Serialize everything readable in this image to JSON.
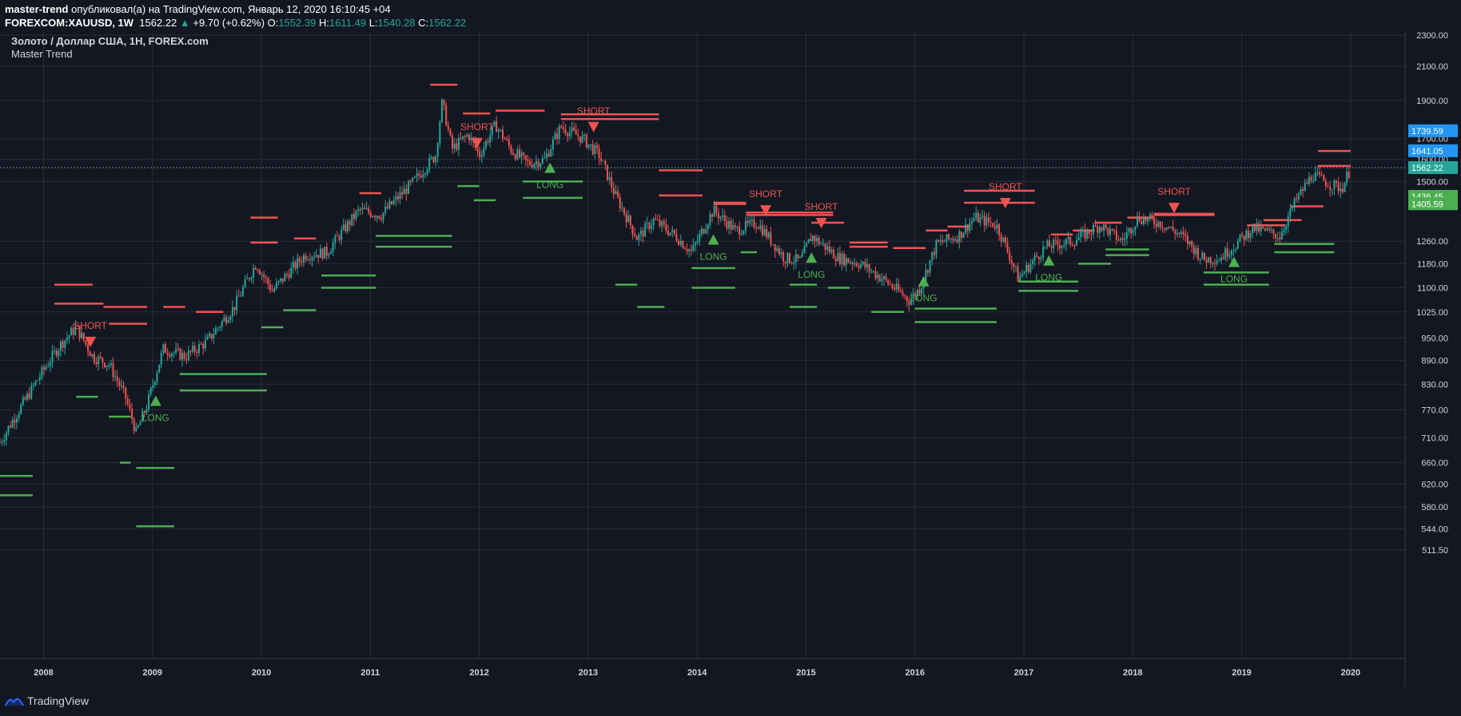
{
  "header": {
    "author": "master-trend",
    "published_text": "опубликовал(а) на TradingView.com, Январь 12, 2020 16:10:45 +04",
    "symbol": "FOREXCOM:XAUUSD, 1W",
    "last": "1562.22",
    "change_arrow": "▲",
    "change": "+9.70 (+0.62%)",
    "o_label": "O:",
    "o_value": "1552.39",
    "h_label": "H:",
    "h_value": "1611.49",
    "l_label": "L:",
    "l_value": "1540.28",
    "c_label": "C:",
    "c_value": "1562.22"
  },
  "footer": {
    "brand": "TradingView"
  },
  "colors": {
    "bg": "#131722",
    "grid": "#2a2e39",
    "up": "#26a69a",
    "down": "#ef5350",
    "short": "#f05350",
    "long": "#4caf50",
    "axis_text": "#d1d4dc",
    "label_blue": "#2196f3",
    "label_teal": "#26a69a",
    "label_green": "#4caf50"
  },
  "chart_data": {
    "type": "candlestick",
    "title": "Золото / Доллар США, 1Н, FOREX.com",
    "indicator": "Master Trend",
    "y_ticks": [
      "2300.00",
      "2100.00",
      "1900.00",
      "1700.00",
      "1600.00",
      "1500.00",
      "1260.00",
      "1180.00",
      "1100.00",
      "1025.00",
      "950.00",
      "890.00",
      "830.00",
      "770.00",
      "710.00",
      "660.00",
      "620.00",
      "580.00",
      "544.00",
      "511.50"
    ],
    "y_scale": "log",
    "x_ticks": [
      "2008",
      "2009",
      "2010",
      "2011",
      "2012",
      "2013",
      "2014",
      "2015",
      "2016",
      "2017",
      "2018",
      "2019",
      "2020"
    ],
    "x_range": [
      2007.6,
      2020.5
    ],
    "price_series_anchors": [
      [
        2007.6,
        700
      ],
      [
        2007.85,
        800
      ],
      [
        2008.15,
        930
      ],
      [
        2008.3,
        980
      ],
      [
        2008.45,
        900
      ],
      [
        2008.6,
        880
      ],
      [
        2008.75,
        800
      ],
      [
        2008.85,
        720
      ],
      [
        2008.95,
        780
      ],
      [
        2009.1,
        920
      ],
      [
        2009.3,
        900
      ],
      [
        2009.5,
        940
      ],
      [
        2009.75,
        1040
      ],
      [
        2009.95,
        1180
      ],
      [
        2010.1,
        1090
      ],
      [
        2010.4,
        1210
      ],
      [
        2010.6,
        1220
      ],
      [
        2010.9,
        1380
      ],
      [
        2011.1,
        1360
      ],
      [
        2011.4,
        1500
      ],
      [
        2011.6,
        1620
      ],
      [
        2011.66,
        1890
      ],
      [
        2011.75,
        1650
      ],
      [
        2011.9,
        1720
      ],
      [
        2012.0,
        1620
      ],
      [
        2012.15,
        1770
      ],
      [
        2012.3,
        1640
      ],
      [
        2012.45,
        1580
      ],
      [
        2012.6,
        1600
      ],
      [
        2012.75,
        1760
      ],
      [
        2012.95,
        1700
      ],
      [
        2013.1,
        1620
      ],
      [
        2013.25,
        1440
      ],
      [
        2013.45,
        1270
      ],
      [
        2013.6,
        1340
      ],
      [
        2013.8,
        1280
      ],
      [
        2013.95,
        1220
      ],
      [
        2014.15,
        1380
      ],
      [
        2014.35,
        1300
      ],
      [
        2014.55,
        1330
      ],
      [
        2014.8,
        1200
      ],
      [
        2014.95,
        1190
      ],
      [
        2015.05,
        1280
      ],
      [
        2015.3,
        1200
      ],
      [
        2015.5,
        1180
      ],
      [
        2015.7,
        1130
      ],
      [
        2015.95,
        1060
      ],
      [
        2016.05,
        1100
      ],
      [
        2016.2,
        1250
      ],
      [
        2016.4,
        1280
      ],
      [
        2016.55,
        1350
      ],
      [
        2016.75,
        1320
      ],
      [
        2016.95,
        1130
      ],
      [
        2017.2,
        1240
      ],
      [
        2017.45,
        1260
      ],
      [
        2017.7,
        1320
      ],
      [
        2017.9,
        1260
      ],
      [
        2018.05,
        1350
      ],
      [
        2018.25,
        1330
      ],
      [
        2018.45,
        1280
      ],
      [
        2018.65,
        1195
      ],
      [
        2018.8,
        1200
      ],
      [
        2018.95,
        1250
      ],
      [
        2019.1,
        1310
      ],
      [
        2019.35,
        1280
      ],
      [
        2019.5,
        1420
      ],
      [
        2019.65,
        1530
      ],
      [
        2019.8,
        1490
      ],
      [
        2019.92,
        1470
      ],
      [
        2020.0,
        1560
      ]
    ],
    "short_signals": [
      {
        "x": 2008.43,
        "price": 940,
        "text": "SHORT"
      },
      {
        "x": 2011.98,
        "price": 1680,
        "text": "SHORT"
      },
      {
        "x": 2013.05,
        "price": 1760,
        "text": "SHORT"
      },
      {
        "x": 2014.63,
        "price": 1380,
        "text": "SHORT"
      },
      {
        "x": 2015.14,
        "price": 1330,
        "text": "SHORT"
      },
      {
        "x": 2016.83,
        "price": 1410,
        "text": "SHORT"
      },
      {
        "x": 2018.38,
        "price": 1390,
        "text": "SHORT"
      }
    ],
    "long_signals": [
      {
        "x": 2009.03,
        "price": 790,
        "text": "LONG"
      },
      {
        "x": 2012.65,
        "price": 1560,
        "text": "LONG"
      },
      {
        "x": 2014.15,
        "price": 1265,
        "text": "LONG"
      },
      {
        "x": 2015.05,
        "price": 1200,
        "text": "LONG"
      },
      {
        "x": 2016.08,
        "price": 1120,
        "text": "LONG"
      },
      {
        "x": 2017.23,
        "price": 1190,
        "text": "LONG"
      },
      {
        "x": 2018.93,
        "price": 1185,
        "text": "LONG"
      }
    ],
    "resistance_levels": [
      [
        2008.1,
        2008.45,
        1110
      ],
      [
        2008.1,
        2008.55,
        1050
      ],
      [
        2008.55,
        2008.95,
        1040
      ],
      [
        2008.6,
        2008.95,
        990
      ],
      [
        2009.1,
        2009.3,
        1040
      ],
      [
        2009.4,
        2009.65,
        1025
      ],
      [
        2009.9,
        2010.15,
        1350
      ],
      [
        2009.9,
        2010.15,
        1255
      ],
      [
        2010.3,
        2010.5,
        1270
      ],
      [
        2010.9,
        2011.1,
        1450
      ],
      [
        2011.55,
        2011.8,
        1990
      ],
      [
        2011.85,
        2012.1,
        1830
      ],
      [
        2012.15,
        2012.6,
        1845
      ],
      [
        2012.75,
        2013.65,
        1825
      ],
      [
        2012.75,
        2013.65,
        1800
      ],
      [
        2013.65,
        2014.05,
        1550
      ],
      [
        2013.65,
        2014.05,
        1440
      ],
      [
        2014.15,
        2014.45,
        1410
      ],
      [
        2014.15,
        2014.45,
        1405
      ],
      [
        2014.45,
        2015.25,
        1370
      ],
      [
        2014.45,
        2015.25,
        1360
      ],
      [
        2015.05,
        2015.35,
        1330
      ],
      [
        2015.4,
        2015.75,
        1255
      ],
      [
        2015.4,
        2015.75,
        1240
      ],
      [
        2015.8,
        2016.1,
        1235
      ],
      [
        2016.1,
        2016.3,
        1300
      ],
      [
        2016.3,
        2016.5,
        1315
      ],
      [
        2016.45,
        2017.1,
        1460
      ],
      [
        2016.45,
        2017.1,
        1410
      ],
      [
        2017.25,
        2017.45,
        1285
      ],
      [
        2017.45,
        2017.65,
        1300
      ],
      [
        2017.65,
        2017.9,
        1330
      ],
      [
        2017.95,
        2018.2,
        1350
      ],
      [
        2018.2,
        2018.75,
        1365
      ],
      [
        2018.2,
        2018.75,
        1360
      ],
      [
        2019.05,
        2019.4,
        1320
      ],
      [
        2019.2,
        2019.55,
        1340
      ],
      [
        2019.45,
        2019.75,
        1395
      ],
      [
        2019.7,
        2020.0,
        1640
      ],
      [
        2019.7,
        2020.0,
        1570
      ]
    ],
    "support_levels": [
      [
        2007.6,
        2007.9,
        635
      ],
      [
        2007.6,
        2007.9,
        600
      ],
      [
        2008.3,
        2008.5,
        800
      ],
      [
        2008.6,
        2008.8,
        755
      ],
      [
        2008.7,
        2008.8,
        660
      ],
      [
        2008.85,
        2009.2,
        650
      ],
      [
        2008.85,
        2009.2,
        548
      ],
      [
        2009.25,
        2010.05,
        855
      ],
      [
        2009.25,
        2010.05,
        815
      ],
      [
        2010.0,
        2010.2,
        980
      ],
      [
        2010.2,
        2010.5,
        1030
      ],
      [
        2010.55,
        2011.05,
        1140
      ],
      [
        2010.55,
        2011.05,
        1100
      ],
      [
        2011.05,
        2011.75,
        1280
      ],
      [
        2011.05,
        2011.75,
        1240
      ],
      [
        2011.8,
        2012.0,
        1480
      ],
      [
        2011.95,
        2012.15,
        1420
      ],
      [
        2012.4,
        2012.95,
        1500
      ],
      [
        2012.4,
        2012.95,
        1430
      ],
      [
        2013.25,
        2013.45,
        1110
      ],
      [
        2013.45,
        2013.7,
        1040
      ],
      [
        2013.95,
        2014.35,
        1165
      ],
      [
        2013.95,
        2014.35,
        1100
      ],
      [
        2014.4,
        2014.55,
        1220
      ],
      [
        2014.85,
        2015.1,
        1110
      ],
      [
        2014.85,
        2015.1,
        1040
      ],
      [
        2015.2,
        2015.4,
        1100
      ],
      [
        2015.6,
        2015.9,
        1025
      ],
      [
        2016.0,
        2016.75,
        1035
      ],
      [
        2016.0,
        2016.75,
        995
      ],
      [
        2016.95,
        2017.5,
        1120
      ],
      [
        2016.95,
        2017.5,
        1090
      ],
      [
        2017.5,
        2017.8,
        1180
      ],
      [
        2017.75,
        2018.15,
        1210
      ],
      [
        2017.75,
        2018.15,
        1230
      ],
      [
        2018.65,
        2019.25,
        1150
      ],
      [
        2018.65,
        2019.25,
        1110
      ],
      [
        2019.3,
        2019.85,
        1250
      ],
      [
        2019.3,
        2019.85,
        1220
      ]
    ],
    "price_labels": [
      {
        "text": "1739.59",
        "price": 1739.59,
        "color": "blue"
      },
      {
        "text": "1641.05",
        "price": 1641.05,
        "color": "blue"
      },
      {
        "text": "1562.22",
        "price": 1562.22,
        "color": "teal"
      },
      {
        "text": "1436.45",
        "price": 1436.45,
        "color": "green"
      },
      {
        "text": "1405.59",
        "price": 1405.59,
        "color": "green"
      }
    ],
    "current_price": 1562.22
  }
}
